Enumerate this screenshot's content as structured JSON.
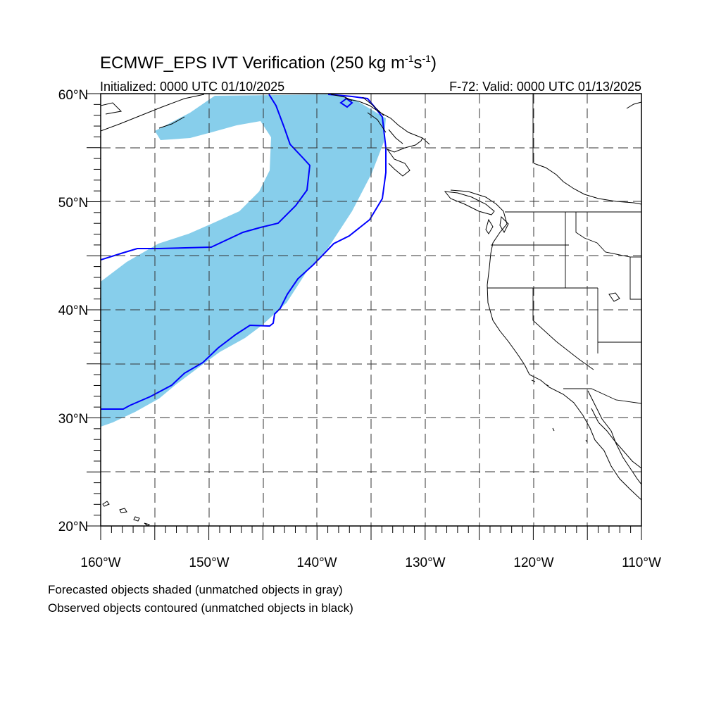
{
  "figure": {
    "title_main": "ECMWF_EPS IVT Verification (250 kg m",
    "title_exp1": "-1",
    "title_mid": "s",
    "title_exp2": "-1",
    "title_end": ")",
    "initialized": "Initialized: 0000 UTC 01/10/2025",
    "valid": "F-72: Valid: 0000 UTC 01/13/2025",
    "footnote_1": "Forecasted objects shaded (unmatched objects in gray)",
    "footnote_2": "Observed objects contoured (unmatched objects in black)"
  },
  "map": {
    "projection": "cylindrical-equidistant",
    "lon_range": [
      -160,
      -110
    ],
    "lat_range": [
      20,
      60
    ],
    "lat_labels": [
      "60°N",
      "50°N",
      "40°N",
      "30°N",
      "20°N"
    ],
    "lon_labels": [
      "160°W",
      "150°W",
      "140°W",
      "130°W",
      "120°W",
      "110°W"
    ],
    "gridlines": "dashed every 5°",
    "colors": {
      "forecast_fill": "#87ceeb",
      "observed_contour": "#0000ff",
      "coastline": "#000000"
    }
  }
}
